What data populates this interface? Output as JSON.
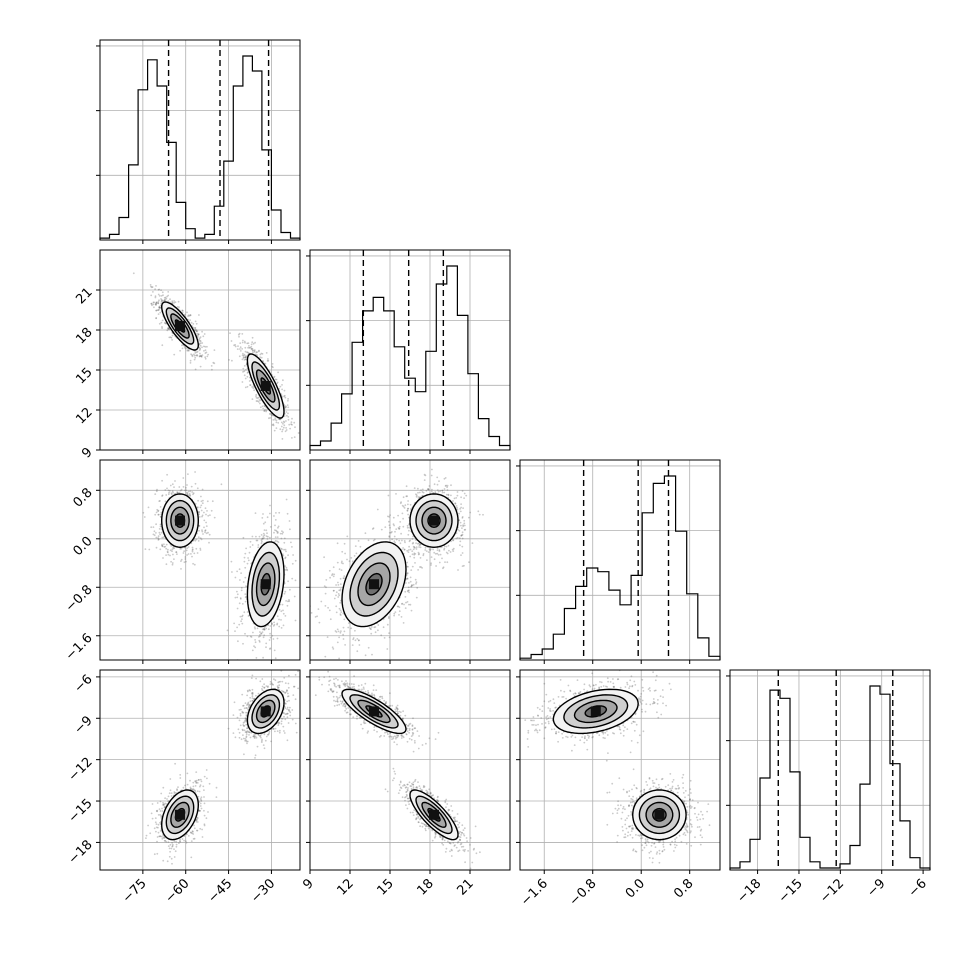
{
  "chart_data": {
    "type": "corner",
    "title": "",
    "grid": true,
    "parameters": [
      {
        "range": [
          -90,
          -20
        ],
        "ticks": [
          -75,
          -60,
          -45,
          -30
        ],
        "tick_labels": [
          "−75",
          "−60",
          "−45",
          "−30"
        ],
        "modes": [
          {
            "mean": -62,
            "sd": 3.2,
            "weight": 0.5
          },
          {
            "mean": -32,
            "sd": 3.2,
            "weight": 0.5
          }
        ],
        "quantiles": [
          -66,
          -48,
          -31
        ],
        "hist_counts": [
          1,
          3,
          12,
          40,
          80,
          96,
          82,
          52,
          20,
          6,
          1,
          3,
          18,
          42,
          82,
          98,
          90,
          48,
          16,
          4,
          1
        ]
      },
      {
        "range": [
          9,
          24
        ],
        "ticks": [
          9,
          12,
          15,
          18,
          21
        ],
        "tick_labels": [
          "9",
          "12",
          "15",
          "18",
          "21"
        ],
        "modes": [
          {
            "mean": 13.8,
            "sd": 1.2,
            "weight": 0.5
          },
          {
            "mean": 18.3,
            "sd": 0.9,
            "weight": 0.5
          }
        ],
        "quantiles": [
          13.0,
          16.4,
          19.0
        ],
        "hist_counts": [
          2,
          4,
          12,
          25,
          48,
          62,
          68,
          62,
          46,
          32,
          26,
          44,
          74,
          82,
          60,
          34,
          14,
          6,
          2
        ]
      },
      {
        "range": [
          -2.0,
          1.3
        ],
        "ticks": [
          -1.6,
          -0.8,
          0.0,
          0.8
        ],
        "tick_labels": [
          "−1.6",
          "−0.8",
          "0.0",
          "0.8"
        ],
        "modes": [
          {
            "mean": -0.75,
            "sd": 0.35,
            "weight": 0.5
          },
          {
            "mean": 0.3,
            "sd": 0.22,
            "weight": 0.5
          }
        ],
        "quantiles": [
          -0.95,
          -0.05,
          0.45
        ],
        "hist_counts": [
          1,
          3,
          6,
          14,
          28,
          40,
          50,
          48,
          38,
          30,
          46,
          80,
          96,
          100,
          70,
          36,
          12,
          2
        ]
      },
      {
        "range": [
          -20,
          -5.5
        ],
        "ticks": [
          -18,
          -15,
          -12,
          -9,
          -6
        ],
        "tick_labels": [
          "−18",
          "−15",
          "−12",
          "−9",
          "−6"
        ],
        "modes": [
          {
            "mean": -16,
            "sd": 0.9,
            "weight": 0.5
          },
          {
            "mean": -8.5,
            "sd": 0.8,
            "weight": 0.5
          }
        ],
        "quantiles": [
          -16.5,
          -12.3,
          -8.2
        ],
        "hist_counts": [
          1,
          4,
          15,
          45,
          88,
          84,
          48,
          16,
          4,
          1,
          1,
          3,
          12,
          42,
          90,
          86,
          52,
          24,
          6,
          1
        ]
      }
    ],
    "pair_modes": [
      {
        "i": 1,
        "j": 0,
        "modes": [
          {
            "mx": -62,
            "my": 18.3,
            "sx": 3.2,
            "sy": 0.9,
            "rho": -0.8
          },
          {
            "mx": -32,
            "my": 13.8,
            "sx": 3.2,
            "sy": 1.2,
            "rho": -0.8
          }
        ]
      },
      {
        "i": 2,
        "j": 0,
        "modes": [
          {
            "mx": -62,
            "my": 0.3,
            "sx": 3.2,
            "sy": 0.22,
            "rho": 0.0
          },
          {
            "mx": -32,
            "my": -0.75,
            "sx": 3.2,
            "sy": 0.35,
            "rho": 0.25
          }
        ]
      },
      {
        "i": 2,
        "j": 1,
        "modes": [
          {
            "mx": 18.3,
            "my": 0.3,
            "sx": 0.9,
            "sy": 0.22,
            "rho": 0.0
          },
          {
            "mx": 13.8,
            "my": -0.75,
            "sx": 1.2,
            "sy": 0.35,
            "rho": 0.35
          }
        ]
      },
      {
        "i": 3,
        "j": 0,
        "modes": [
          {
            "mx": -62,
            "my": -16,
            "sx": 3.2,
            "sy": 0.9,
            "rho": 0.4
          },
          {
            "mx": -32,
            "my": -8.5,
            "sx": 3.2,
            "sy": 0.8,
            "rho": 0.4
          }
        ]
      },
      {
        "i": 3,
        "j": 1,
        "modes": [
          {
            "mx": 18.3,
            "my": -16,
            "sx": 0.9,
            "sy": 0.9,
            "rho": -0.8
          },
          {
            "mx": 13.8,
            "my": -8.5,
            "sx": 1.2,
            "sy": 0.8,
            "rho": -0.8
          }
        ]
      },
      {
        "i": 3,
        "j": 2,
        "modes": [
          {
            "mx": 0.3,
            "my": -16,
            "sx": 0.22,
            "sy": 0.9,
            "rho": 0.0
          },
          {
            "mx": -0.75,
            "my": -8.5,
            "sx": 0.35,
            "sy": 0.8,
            "rho": 0.35
          }
        ]
      }
    ],
    "contour_levels_sigma": [
      0.5,
      1.0,
      1.5,
      2.0
    ]
  }
}
